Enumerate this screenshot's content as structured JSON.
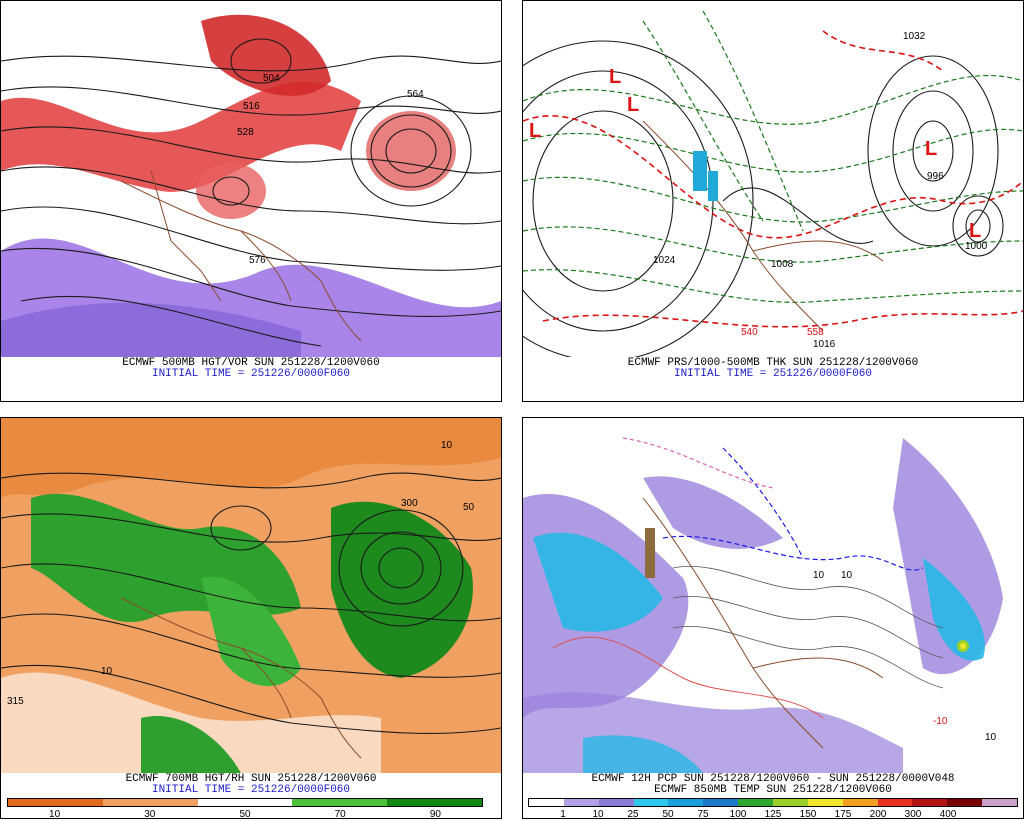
{
  "panels": {
    "top_left": {
      "caption": "ECMWF 500MB HGT/VOR SUN 251228/1200V060",
      "initial_time": "INITIAL TIME = 251226/0000F060",
      "contour_labels": [
        "516",
        "528",
        "504",
        "564",
        "576"
      ]
    },
    "top_right": {
      "caption": "ECMWF PRS/1000-500MB THK SUN 251228/1200V060",
      "initial_time": "INITIAL TIME = 251226/0000F060",
      "contour_labels": [
        "1032",
        "1024",
        "1008",
        "1000",
        "1016",
        "996",
        "540",
        "558"
      ],
      "low_markers": [
        "L",
        "L",
        "L",
        "L",
        "L"
      ]
    },
    "bottom_left": {
      "caption": "ECMWF 700MB HGT/RH SUN 251228/1200V060",
      "initial_time": "INITIAL TIME = 251226/0000F060",
      "contour_labels": [
        "10",
        "315",
        "300",
        "50",
        "10"
      ],
      "legend": {
        "colors": [
          "#e36a1c",
          "#f0a060",
          "#ffffff",
          "#4fc03a",
          "#118811"
        ],
        "ticks": [
          "10",
          "30",
          "50",
          "70",
          "90"
        ]
      }
    },
    "bottom_right": {
      "caption": "ECMWF 12H PCP SUN 251228/1200V060 - SUN 251228/0000V048",
      "caption2": "ECMWF 850MB TEMP SUN 251228/1200V060",
      "contour_labels": [
        "10",
        "10",
        "10",
        "-10"
      ],
      "legend": {
        "colors": [
          "#ffffff",
          "#b4a0e6",
          "#8c7cd8",
          "#2ec8ec",
          "#1aa0dc",
          "#1e78c8",
          "#2fa82f",
          "#9cd02a",
          "#f0e62c",
          "#f0a01e",
          "#e6321e",
          "#b41414",
          "#780000",
          "#c8a0c8"
        ],
        "ticks": [
          "1",
          "10",
          "25",
          "50",
          "75",
          "100",
          "125",
          "150",
          "175",
          "200",
          "300",
          "400"
        ]
      }
    }
  }
}
